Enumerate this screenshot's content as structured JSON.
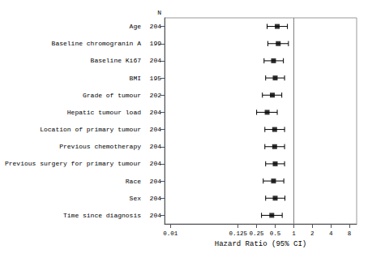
{
  "chart_data": {
    "type": "forest",
    "categories": [
      "Age",
      "Baseline chromogranin A",
      "Baseline Ki67",
      "BMI",
      "Grade of tumour",
      "Hepatic tumour load",
      "Location of primary tumour",
      "Previous chemotherapy",
      "Previous surgery for primary tumour",
      "Race",
      "Sex",
      "Time since diagnosis"
    ],
    "n_header": "N",
    "n_values": [
      204,
      199,
      204,
      195,
      202,
      204,
      204,
      204,
      204,
      204,
      204,
      204
    ],
    "values": [
      0.54,
      0.56,
      0.47,
      0.5,
      0.45,
      0.37,
      0.49,
      0.49,
      0.5,
      0.47,
      0.5,
      0.44
    ],
    "ci_lower": [
      0.37,
      0.38,
      0.33,
      0.35,
      0.31,
      0.25,
      0.34,
      0.34,
      0.35,
      0.32,
      0.35,
      0.3
    ],
    "ci_upper": [
      0.79,
      0.82,
      0.68,
      0.71,
      0.64,
      0.54,
      0.71,
      0.71,
      0.71,
      0.69,
      0.72,
      0.65
    ],
    "xlabel": "Hazard Ratio (95% CI)",
    "log": "x",
    "xlim": [
      0.008,
      10.5
    ],
    "xticks": [
      0.01,
      0.125,
      0.25,
      0.5,
      1,
      2,
      4,
      8
    ],
    "reference_line": {
      "x": 1.0,
      "color": "#808080"
    },
    "color": "#000000",
    "marker": "square",
    "grid": false
  }
}
